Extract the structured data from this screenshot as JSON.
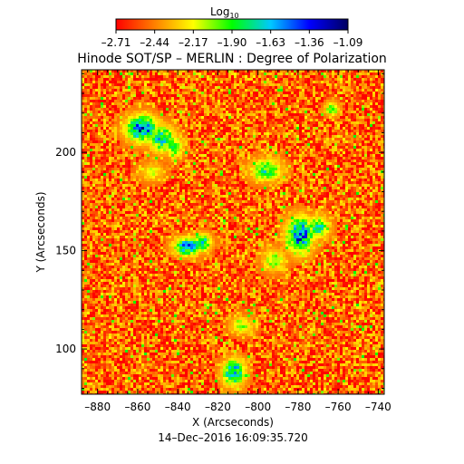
{
  "chart_data": {
    "type": "heatmap",
    "title": "Hinode SOT/SP – MERLIN : Degree of Polarization",
    "timestamp": "14–Dec–2016 16:09:35.720",
    "xlabel": "X (Arcseconds)",
    "ylabel": "Y (Arcseconds)",
    "xlim": [
      -888,
      -737
    ],
    "ylim": [
      77,
      242
    ],
    "x_ticks": [
      -880,
      -860,
      -840,
      -820,
      -800,
      -780,
      -760,
      -740
    ],
    "x_tick_labels": [
      "–880",
      "–860",
      "–840",
      "–820",
      "–800",
      "–780",
      "–760",
      "–740"
    ],
    "y_ticks": [
      100,
      150,
      200
    ],
    "y_tick_labels": [
      "100",
      "150",
      "200"
    ],
    "colorbar": {
      "label_base": "Log",
      "label_sub": "10",
      "range": [
        -2.71,
        -1.09
      ],
      "ticks": [
        -2.71,
        -2.44,
        -2.17,
        -1.9,
        -1.63,
        -1.36,
        -1.09
      ],
      "tick_labels": [
        "–2.71",
        "–2.44",
        "–2.17",
        "–1.90",
        "–1.63",
        "–1.36",
        "–1.09"
      ],
      "colormap": [
        "#ff0000",
        "#ff8000",
        "#ffff00",
        "#00ff00",
        "#00c8ff",
        "#0000ff",
        "#000060"
      ]
    },
    "background_level": -2.5,
    "features": [
      {
        "x": -858,
        "y": 212,
        "rx": 7,
        "ry": 6,
        "peak": -1.25
      },
      {
        "x": -848,
        "y": 207,
        "rx": 6,
        "ry": 6,
        "peak": -1.55
      },
      {
        "x": -842,
        "y": 203,
        "rx": 4,
        "ry": 5,
        "peak": -1.75
      },
      {
        "x": -835,
        "y": 152,
        "rx": 6,
        "ry": 4,
        "peak": -1.35
      },
      {
        "x": -828,
        "y": 154,
        "rx": 4,
        "ry": 4,
        "peak": -1.5
      },
      {
        "x": -779,
        "y": 158,
        "rx": 6,
        "ry": 8,
        "peak": -1.25
      },
      {
        "x": -770,
        "y": 162,
        "rx": 5,
        "ry": 5,
        "peak": -1.65
      },
      {
        "x": -796,
        "y": 191,
        "rx": 7,
        "ry": 5,
        "peak": -1.7
      },
      {
        "x": -812,
        "y": 88,
        "rx": 5,
        "ry": 6,
        "peak": -1.4
      },
      {
        "x": -808,
        "y": 112,
        "rx": 5,
        "ry": 4,
        "peak": -2.0
      },
      {
        "x": -792,
        "y": 145,
        "rx": 5,
        "ry": 5,
        "peak": -1.9
      },
      {
        "x": -763,
        "y": 222,
        "rx": 3,
        "ry": 3,
        "peak": -1.75
      },
      {
        "x": -853,
        "y": 190,
        "rx": 5,
        "ry": 4,
        "peak": -2.05
      }
    ]
  }
}
